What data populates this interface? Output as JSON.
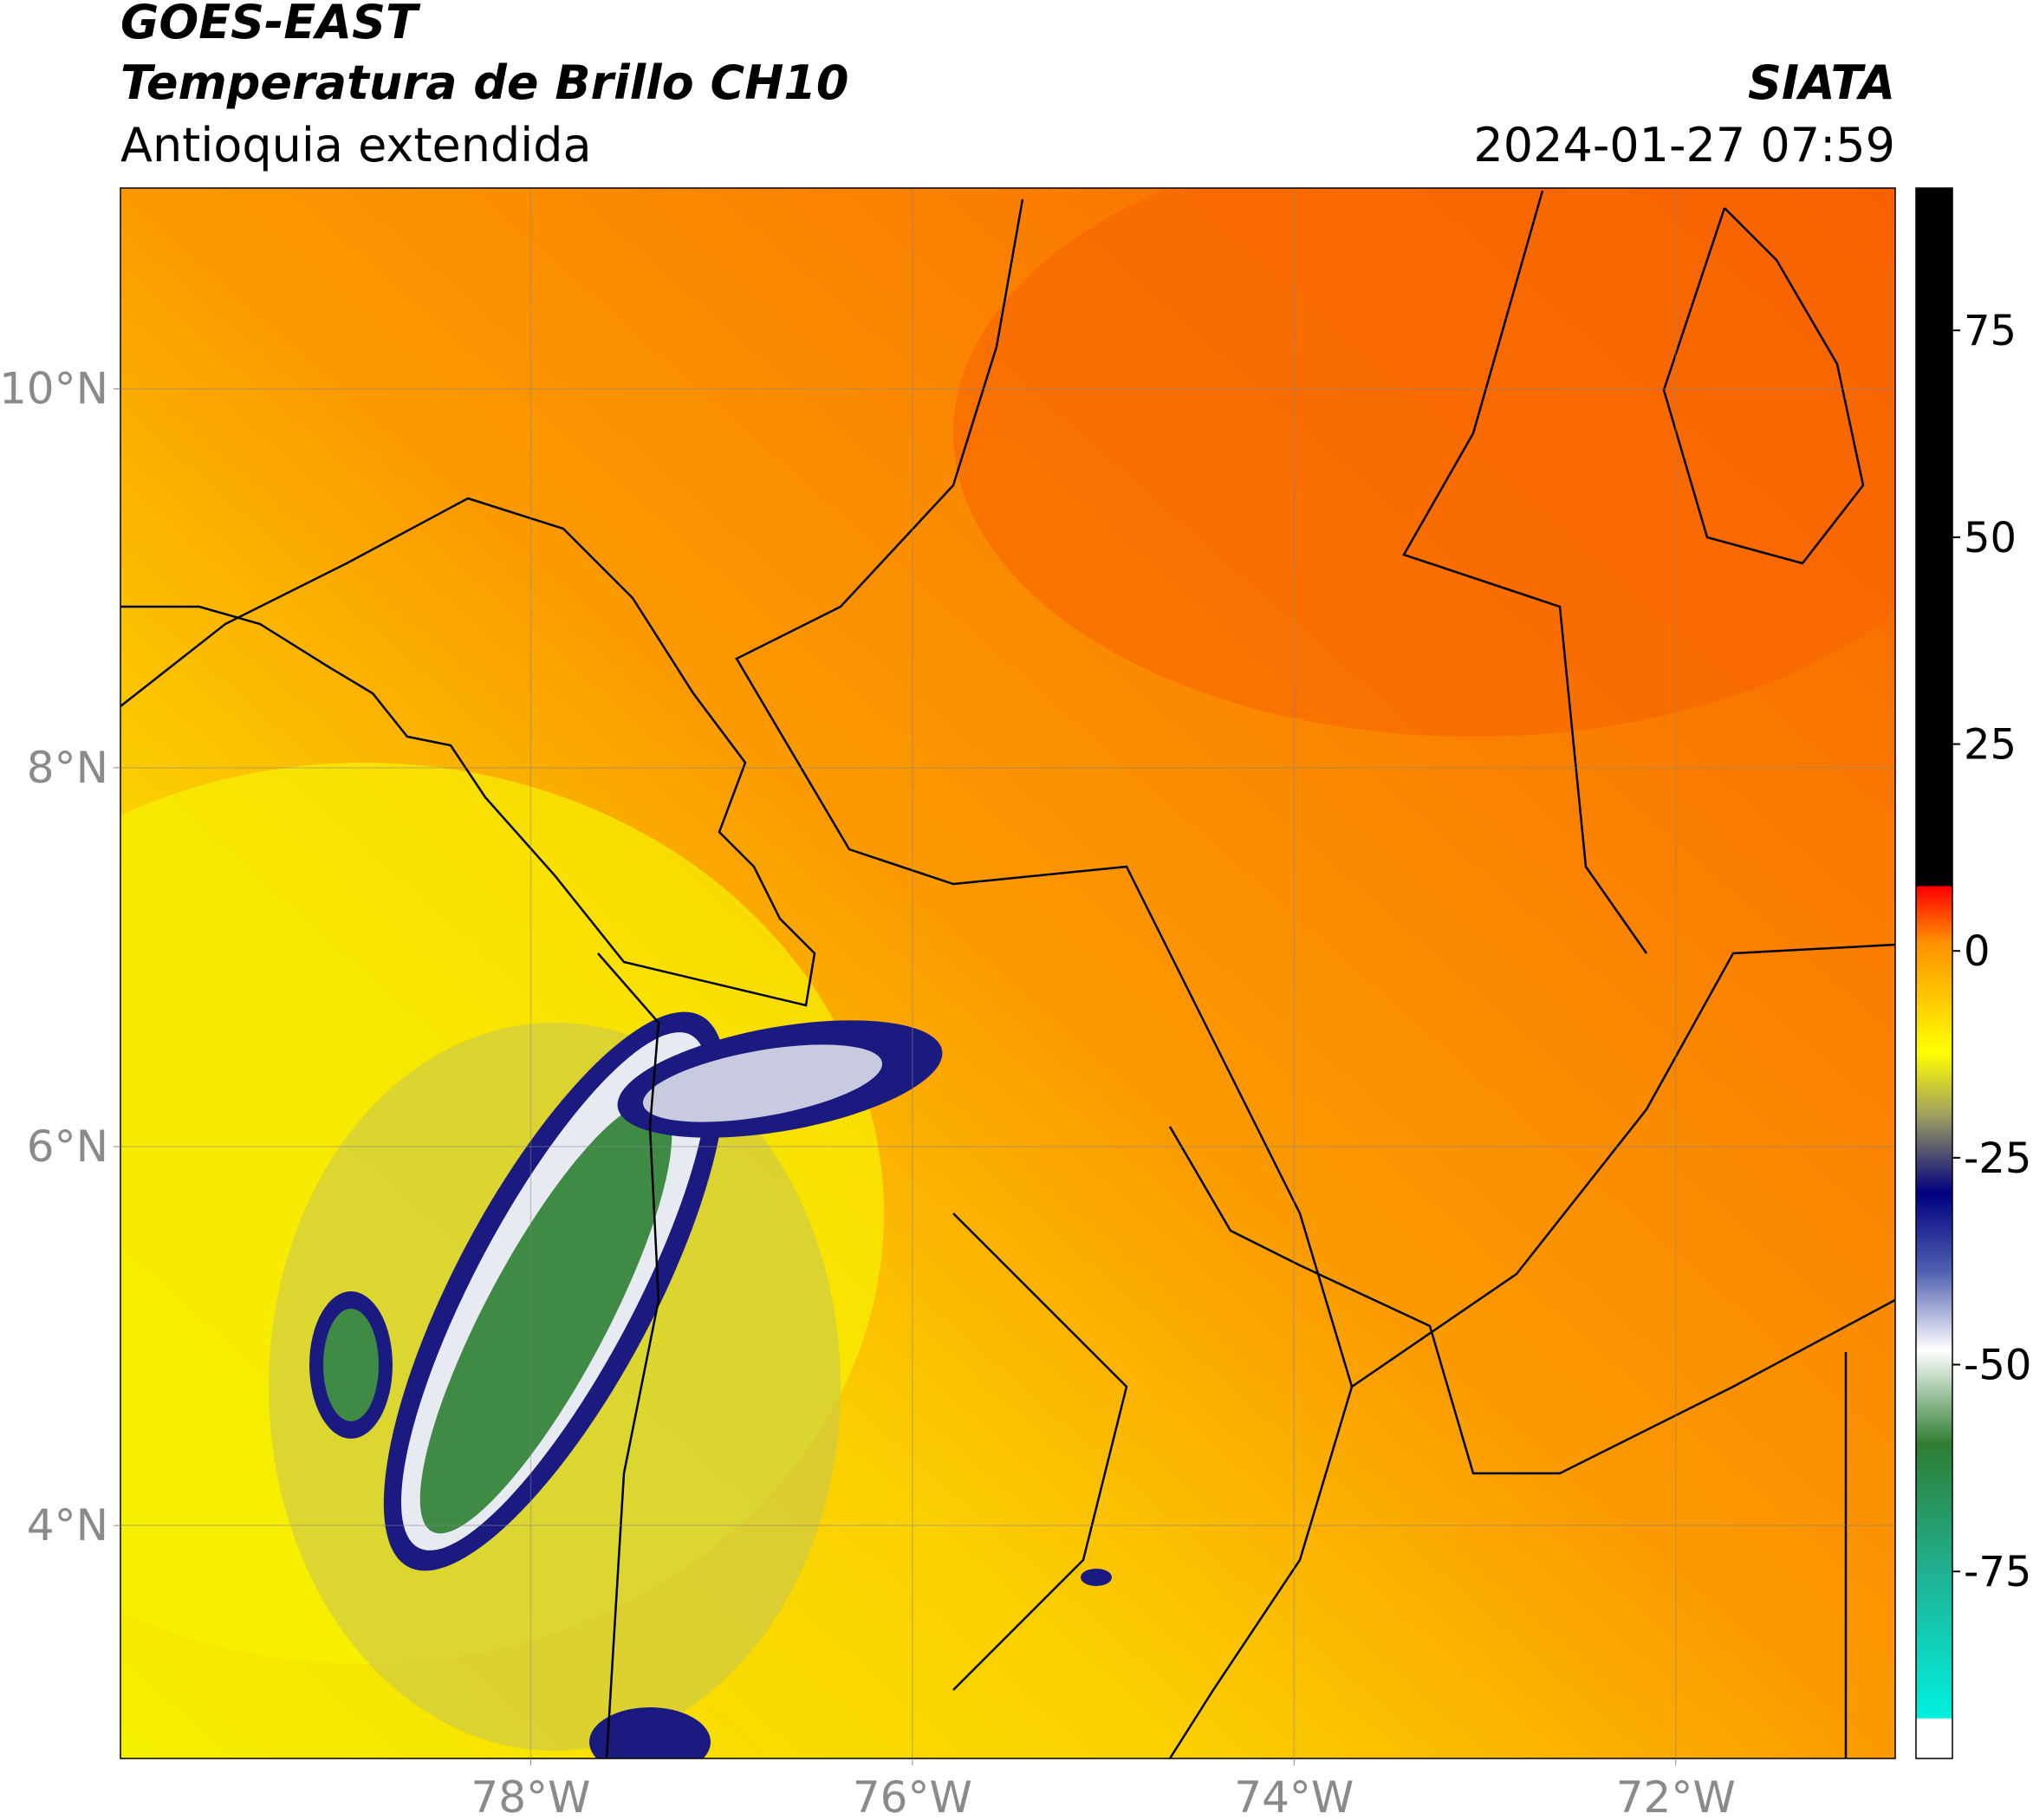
{
  "header": {
    "satellite": "GOES-EAST",
    "product": "Temperatura de Brillo CH10",
    "region": "Antioquia extendida",
    "source": "SIATA",
    "datetime": "2024-01-27 07:59"
  },
  "map": {
    "xlim": [
      -80.15,
      -70.85
    ],
    "ylim": [
      2.77,
      11.06
    ],
    "xticks": [
      {
        "value": -78,
        "label": "78°W"
      },
      {
        "value": -76,
        "label": "76°W"
      },
      {
        "value": -74,
        "label": "74°W"
      },
      {
        "value": -72,
        "label": "72°W"
      }
    ],
    "yticks": [
      {
        "value": 4,
        "label": "4°N"
      },
      {
        "value": 6,
        "label": "6°N"
      },
      {
        "value": 8,
        "label": "8°N"
      },
      {
        "value": 10,
        "label": "10°N"
      }
    ],
    "grid": true
  },
  "colorbar": {
    "lim": [
      -97.6,
      92.2
    ],
    "ticks": [
      -75,
      -50,
      -25,
      0,
      25,
      50,
      75
    ]
  }
}
